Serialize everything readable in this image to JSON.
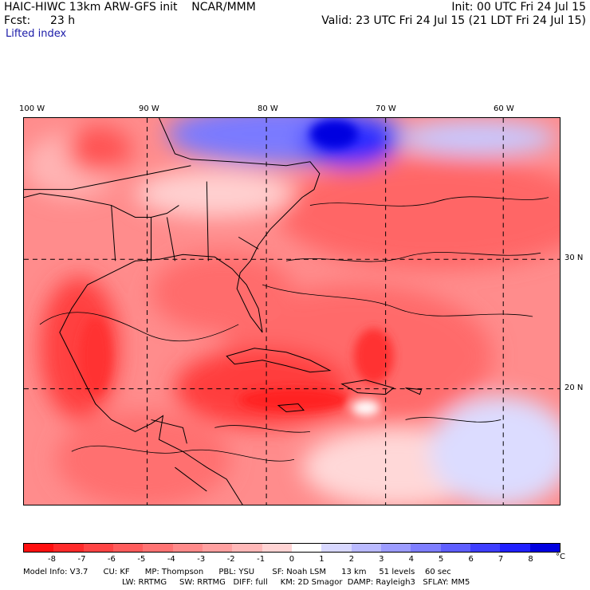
{
  "header": {
    "model": "HAIC-HIWC 13km ARW-GFS init    NCAR/MMM",
    "fcst_label": "Fcst:",
    "fcst_value": "23 h",
    "field": "Lifted index",
    "init": "Init: 00 UTC Fri 24 Jul 15",
    "valid": "Valid: 23 UTC Fri 24 Jul 15 (21 LDT Fri 24 Jul 15)"
  },
  "map": {
    "lon_labels": [
      "100 W",
      "90 W",
      "80 W",
      "70 W",
      "60 W"
    ],
    "lat_labels": [
      "30 N",
      "20 N"
    ]
  },
  "colorbar": {
    "ticks": [
      "-8",
      "-7",
      "-6",
      "-5",
      "-4",
      "-3",
      "-2",
      "-1",
      "0",
      "1",
      "2",
      "3",
      "4",
      "5",
      "6",
      "7",
      "8"
    ],
    "unit": "°C",
    "colors": [
      "#ff0f0f",
      "#ff2a2a",
      "#ff4444",
      "#ff5c5c",
      "#ff7373",
      "#ff8a8a",
      "#ffa0a0",
      "#ffb8b8",
      "#ffd4d4",
      "#ffffff",
      "#d8d8ff",
      "#babaff",
      "#9c9cff",
      "#7e7eff",
      "#5e5eff",
      "#3e3eff",
      "#2020ff",
      "#0000e0"
    ]
  },
  "model_info": {
    "line1": "Model Info: V3.7      CU: KF      MP: Thompson      PBL: YSU       SF: Noah LSM      13 km     51 levels    60 sec",
    "line2": "LW: RRTMG     SW: RRTMG   DIFF: full     KM: 2D Smagor  DAMP: Rayleigh3   SFLAY: MM5"
  }
}
